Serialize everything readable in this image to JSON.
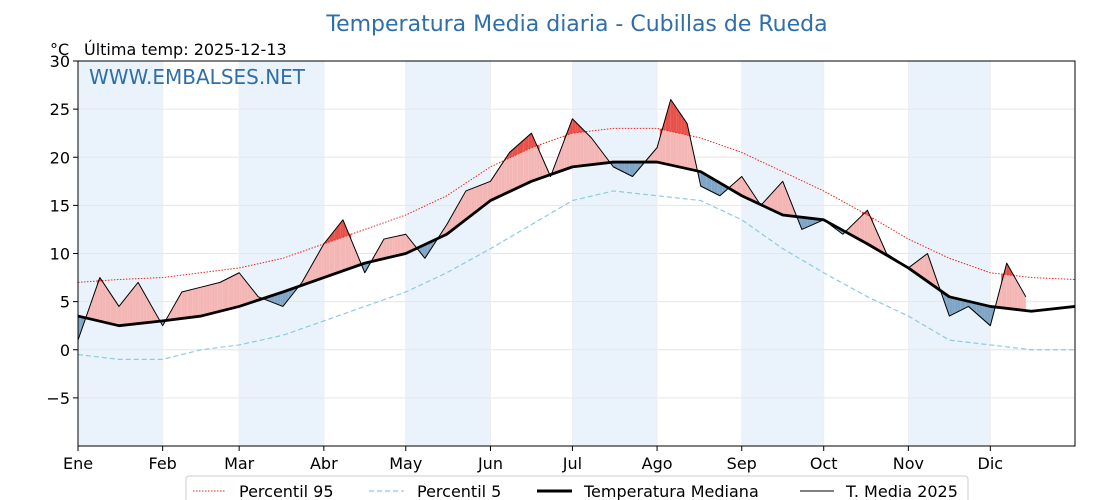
{
  "chart_data": {
    "type": "line",
    "title": "Temperatura Media diaria - Cubillas de Rueda",
    "unit_label": "°C",
    "last_temp_label": "Última temp: 2025-12-13",
    "watermark": "WWW.EMBALSES.NET",
    "ylim": [
      -10,
      30
    ],
    "xlim_days": [
      0,
      365
    ],
    "y_ticks": [
      -5,
      0,
      5,
      10,
      15,
      20,
      25,
      30
    ],
    "months": [
      {
        "label": "Ene",
        "day": 0
      },
      {
        "label": "Feb",
        "day": 31
      },
      {
        "label": "Mar",
        "day": 59
      },
      {
        "label": "Abr",
        "day": 90
      },
      {
        "label": "May",
        "day": 120
      },
      {
        "label": "Jun",
        "day": 151
      },
      {
        "label": "Jul",
        "day": 181
      },
      {
        "label": "Ago",
        "day": 212
      },
      {
        "label": "Sep",
        "day": 243
      },
      {
        "label": "Oct",
        "day": 273
      },
      {
        "label": "Nov",
        "day": 304
      },
      {
        "label": "Dic",
        "day": 334
      }
    ],
    "series": [
      {
        "name": "Percentil 95",
        "style": "dotted",
        "color": "#e8261e",
        "days": [
          0,
          15,
          31,
          45,
          59,
          75,
          90,
          105,
          120,
          135,
          151,
          166,
          181,
          196,
          212,
          228,
          243,
          258,
          273,
          289,
          304,
          319,
          334,
          349,
          365
        ],
        "values": [
          7.0,
          7.3,
          7.5,
          8.0,
          8.5,
          9.5,
          11.0,
          12.5,
          14.0,
          16.0,
          19.0,
          21.0,
          22.5,
          23.0,
          23.0,
          22.0,
          20.5,
          18.5,
          16.5,
          14.0,
          11.5,
          9.5,
          8.0,
          7.5,
          7.3
        ]
      },
      {
        "name": "Percentil 5",
        "style": "dashed",
        "color": "#8ecae0",
        "days": [
          0,
          15,
          31,
          45,
          59,
          75,
          90,
          105,
          120,
          135,
          151,
          166,
          181,
          196,
          212,
          228,
          243,
          258,
          273,
          289,
          304,
          319,
          334,
          349,
          365
        ],
        "values": [
          -0.5,
          -1.0,
          -1.0,
          0.0,
          0.5,
          1.5,
          3.0,
          4.5,
          6.0,
          8.0,
          10.5,
          13.0,
          15.5,
          16.5,
          16.0,
          15.5,
          13.5,
          10.5,
          8.0,
          5.5,
          3.5,
          1.0,
          0.5,
          0.0,
          0.0
        ]
      },
      {
        "name": "Temperatura Mediana",
        "style": "solid",
        "color": "#000000",
        "days": [
          0,
          15,
          31,
          45,
          59,
          75,
          90,
          105,
          120,
          135,
          151,
          166,
          181,
          196,
          212,
          228,
          243,
          258,
          273,
          289,
          304,
          319,
          334,
          349,
          365
        ],
        "values": [
          3.5,
          2.5,
          3.0,
          3.5,
          4.5,
          6.0,
          7.5,
          9.0,
          10.0,
          12.0,
          15.5,
          17.5,
          19.0,
          19.5,
          19.5,
          18.5,
          16.0,
          14.0,
          13.5,
          11.0,
          8.5,
          5.5,
          4.5,
          4.0,
          4.5
        ]
      },
      {
        "name": "T. Media 2025",
        "style": "solid-thin",
        "color": "#000000",
        "days": [
          0,
          8,
          15,
          22,
          31,
          38,
          45,
          52,
          59,
          66,
          75,
          82,
          90,
          97,
          105,
          112,
          120,
          127,
          135,
          142,
          151,
          158,
          166,
          173,
          181,
          188,
          196,
          203,
          212,
          217,
          223,
          228,
          235,
          243,
          250,
          258,
          265,
          273,
          280,
          289,
          296,
          304,
          311,
          319,
          326,
          334,
          340,
          347
        ],
        "values": [
          1.0,
          7.5,
          4.5,
          7.0,
          2.5,
          6.0,
          6.5,
          7.0,
          8.0,
          5.5,
          4.5,
          7.0,
          11.0,
          13.5,
          8.0,
          11.5,
          12.0,
          9.5,
          13.0,
          16.5,
          17.5,
          20.5,
          22.5,
          18.0,
          24.0,
          22.0,
          19.0,
          18.0,
          21.0,
          26.0,
          23.5,
          17.0,
          16.0,
          18.0,
          15.0,
          17.5,
          12.5,
          13.5,
          12.0,
          14.5,
          10.0,
          8.5,
          10.0,
          3.5,
          4.5,
          2.5,
          9.0,
          5.5
        ]
      }
    ]
  },
  "legend": {
    "items": [
      {
        "label": "Percentil 95",
        "style": "dotted",
        "color": "#e8261e"
      },
      {
        "label": "Percentil 5",
        "style": "dashed",
        "color": "#8ecae0"
      },
      {
        "label": "Temperatura Mediana",
        "style": "thick",
        "color": "#000000"
      },
      {
        "label": "T. Media 2025",
        "style": "thin",
        "color": "#000000"
      }
    ]
  },
  "colors": {
    "title": "#2f6fa8",
    "above_median": "#f4b6b4",
    "above_p95": "#e8504a",
    "below_median": "#7ea4c6",
    "below_p5": "#2e6da4",
    "month_band": "#eaf3fb"
  }
}
